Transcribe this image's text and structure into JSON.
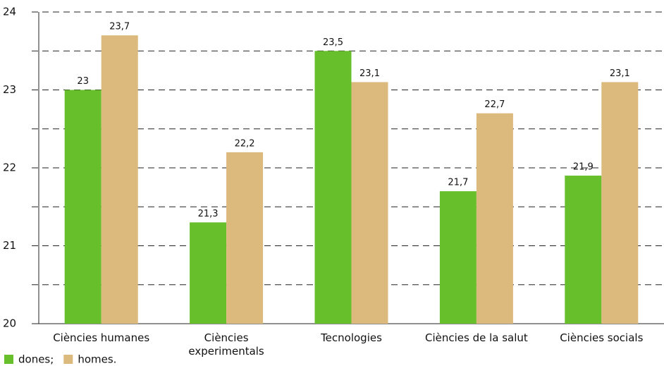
{
  "chart_data": {
    "type": "bar",
    "categories": [
      "Ciències humanes",
      "Ciències\nexperimentals",
      "Tecnologies",
      "Ciències de la salut",
      "Ciències socials"
    ],
    "series": [
      {
        "name": "dones;",
        "color": "#66bf2b",
        "values": [
          23,
          21.3,
          23.5,
          21.7,
          21.9
        ],
        "value_labels": [
          "23",
          "21,3",
          "23,5",
          "21,7",
          "21,9"
        ]
      },
      {
        "name": "homes.",
        "color": "#dcb97c",
        "values": [
          23.7,
          22.2,
          23.1,
          22.7,
          23.1
        ],
        "value_labels": [
          "23,7",
          "22,2",
          "23,1",
          "22,7",
          "23,1"
        ]
      }
    ],
    "ylim": [
      20,
      24
    ],
    "yticks": [
      20,
      21,
      22,
      23,
      24
    ],
    "minor_yticks": [
      20.5,
      21.5,
      22.5,
      23.5
    ],
    "grid": true,
    "legend": "bottom-left"
  }
}
